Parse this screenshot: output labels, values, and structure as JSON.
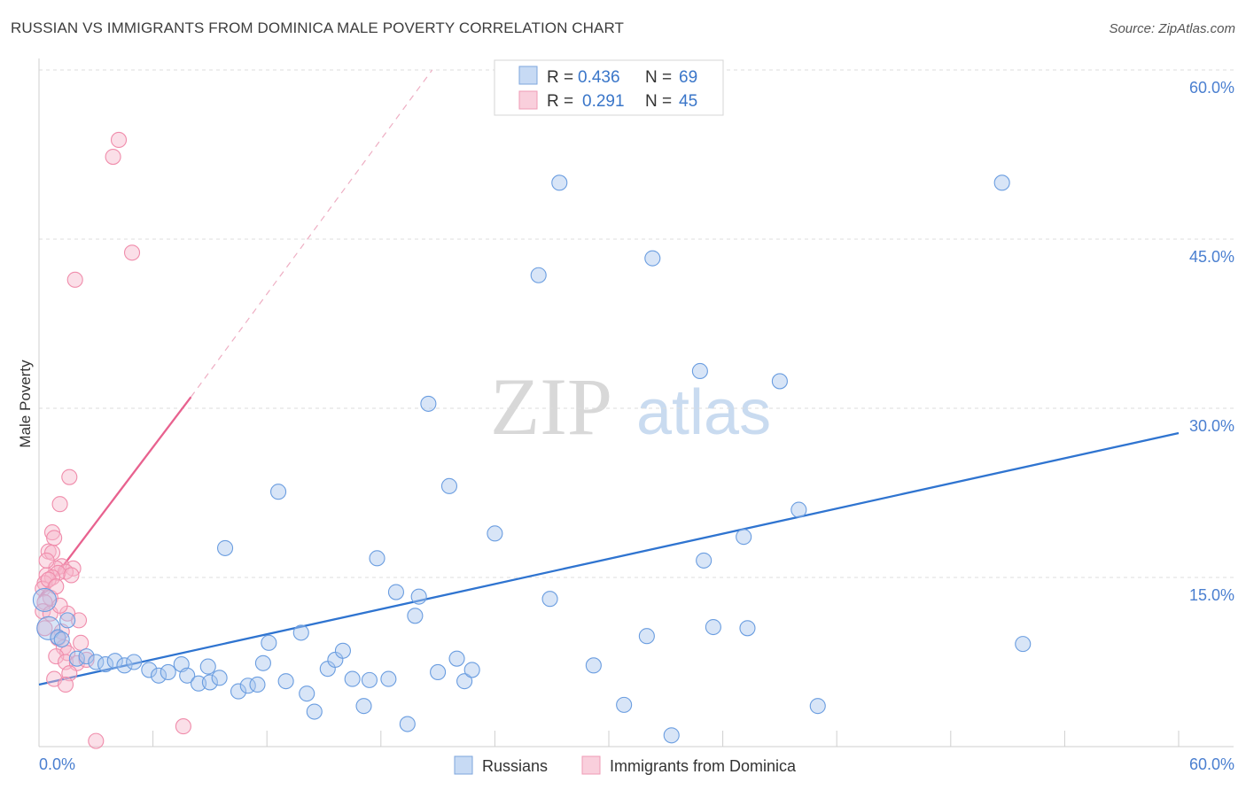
{
  "title": "RUSSIAN VS IMMIGRANTS FROM DOMINICA MALE POVERTY CORRELATION CHART",
  "source": "Source: ZipAtlas.com",
  "watermark": {
    "zip": "ZIP",
    "atlas": "atlas"
  },
  "legend_top": {
    "r_label": "R =",
    "n_label": "N =",
    "rows": [
      {
        "r": "0.436",
        "n": "69",
        "color": "#a9c6ee"
      },
      {
        "r": "0.291",
        "n": "45",
        "color": "#f6b8cb"
      }
    ]
  },
  "legend_bottom": [
    {
      "label": "Russians",
      "color": "#a9c6ee"
    },
    {
      "label": "Immigrants from Dominica",
      "color": "#f6b8cb"
    }
  ],
  "chart_data": {
    "type": "scatter",
    "title": "RUSSIAN VS IMMIGRANTS FROM DOMINICA MALE POVERTY CORRELATION CHART",
    "xlabel": "",
    "ylabel": "Male Poverty",
    "xlim": [
      0,
      60
    ],
    "ylim": [
      0,
      60
    ],
    "x_tick_labels": [
      "0.0%",
      "60.0%"
    ],
    "y_tick_labels": [
      "60.0%",
      "45.0%",
      "30.0%",
      "15.0%"
    ],
    "y_ticks": [
      60,
      45,
      30,
      15
    ],
    "grid": true,
    "series": [
      {
        "name": "Russians",
        "color": "#6a9de0",
        "fill": "#a9c6ee",
        "trend": {
          "x": [
            0,
            60
          ],
          "y": [
            5.5,
            27.8
          ],
          "color": "#2f74d0"
        },
        "points": [
          [
            0.3,
            13.0
          ],
          [
            0.5,
            10.5
          ],
          [
            1.0,
            9.7
          ],
          [
            1.5,
            11.2
          ],
          [
            2.0,
            7.8
          ],
          [
            2.5,
            8.0
          ],
          [
            3.0,
            7.5
          ],
          [
            3.5,
            7.3
          ],
          [
            4.0,
            7.6
          ],
          [
            4.5,
            7.2
          ],
          [
            5.0,
            7.5
          ],
          [
            5.8,
            6.8
          ],
          [
            6.3,
            6.3
          ],
          [
            6.8,
            6.6
          ],
          [
            7.5,
            7.3
          ],
          [
            7.8,
            6.3
          ],
          [
            8.4,
            5.6
          ],
          [
            8.9,
            7.1
          ],
          [
            9.0,
            5.7
          ],
          [
            9.5,
            6.1
          ],
          [
            9.8,
            17.6
          ],
          [
            10.5,
            4.9
          ],
          [
            11.0,
            5.4
          ],
          [
            11.5,
            5.5
          ],
          [
            11.8,
            7.4
          ],
          [
            12.1,
            9.2
          ],
          [
            12.6,
            22.6
          ],
          [
            13.0,
            5.8
          ],
          [
            13.8,
            10.1
          ],
          [
            14.1,
            4.7
          ],
          [
            14.5,
            3.1
          ],
          [
            15.2,
            6.9
          ],
          [
            15.6,
            7.7
          ],
          [
            16.0,
            8.5
          ],
          [
            16.5,
            6.0
          ],
          [
            17.1,
            3.6
          ],
          [
            17.4,
            5.9
          ],
          [
            17.8,
            16.7
          ],
          [
            18.4,
            6.0
          ],
          [
            18.8,
            13.7
          ],
          [
            19.4,
            2.0
          ],
          [
            19.8,
            11.6
          ],
          [
            20.0,
            13.3
          ],
          [
            20.5,
            30.4
          ],
          [
            21.0,
            6.6
          ],
          [
            21.6,
            23.1
          ],
          [
            22.0,
            7.8
          ],
          [
            22.4,
            5.8
          ],
          [
            22.8,
            6.8
          ],
          [
            24.0,
            18.9
          ],
          [
            26.3,
            41.8
          ],
          [
            26.9,
            13.1
          ],
          [
            27.4,
            50.0
          ],
          [
            29.2,
            7.2
          ],
          [
            30.8,
            3.7
          ],
          [
            32.0,
            9.8
          ],
          [
            32.3,
            43.3
          ],
          [
            33.3,
            1.0
          ],
          [
            34.8,
            33.3
          ],
          [
            35.0,
            16.5
          ],
          [
            35.5,
            10.6
          ],
          [
            37.1,
            18.6
          ],
          [
            37.3,
            10.5
          ],
          [
            39.0,
            32.4
          ],
          [
            40.0,
            21.0
          ],
          [
            41.0,
            3.6
          ],
          [
            50.7,
            50.0
          ],
          [
            51.8,
            9.1
          ],
          [
            1.2,
            9.5
          ]
        ]
      },
      {
        "name": "Immigrants from Dominica",
        "color": "#f08cab",
        "fill": "#f6b8cb",
        "trend": {
          "x": [
            0,
            8.0
          ],
          "y": [
            13.2,
            31.0
          ],
          "color": "#e8628f",
          "dashed_to": [
            20.7,
            60
          ]
        },
        "points": [
          [
            3.9,
            52.3
          ],
          [
            4.2,
            53.8
          ],
          [
            4.9,
            43.8
          ],
          [
            1.9,
            41.4
          ],
          [
            1.6,
            23.9
          ],
          [
            1.1,
            21.5
          ],
          [
            0.7,
            19.0
          ],
          [
            0.8,
            18.5
          ],
          [
            0.5,
            17.3
          ],
          [
            0.7,
            17.2
          ],
          [
            1.2,
            16.0
          ],
          [
            0.9,
            15.8
          ],
          [
            1.8,
            15.8
          ],
          [
            1.4,
            15.5
          ],
          [
            1.0,
            15.4
          ],
          [
            0.4,
            15.2
          ],
          [
            0.7,
            15.0
          ],
          [
            0.3,
            14.5
          ],
          [
            0.2,
            14.0
          ],
          [
            0.5,
            14.8
          ],
          [
            0.6,
            13.2
          ],
          [
            0.3,
            12.8
          ],
          [
            0.2,
            12.0
          ],
          [
            0.6,
            11.8
          ],
          [
            1.5,
            11.8
          ],
          [
            2.1,
            11.2
          ],
          [
            1.2,
            10.2
          ],
          [
            1.0,
            9.6
          ],
          [
            2.2,
            9.2
          ],
          [
            1.3,
            8.8
          ],
          [
            1.5,
            8.3
          ],
          [
            0.9,
            8.0
          ],
          [
            1.4,
            7.5
          ],
          [
            2.0,
            7.4
          ],
          [
            2.5,
            7.7
          ],
          [
            1.6,
            6.5
          ],
          [
            0.8,
            6.0
          ],
          [
            1.4,
            5.5
          ],
          [
            7.6,
            1.8
          ],
          [
            3.0,
            0.5
          ],
          [
            0.3,
            10.5
          ],
          [
            0.9,
            14.2
          ],
          [
            1.7,
            15.2
          ],
          [
            0.4,
            16.5
          ],
          [
            1.1,
            12.5
          ]
        ]
      }
    ]
  }
}
